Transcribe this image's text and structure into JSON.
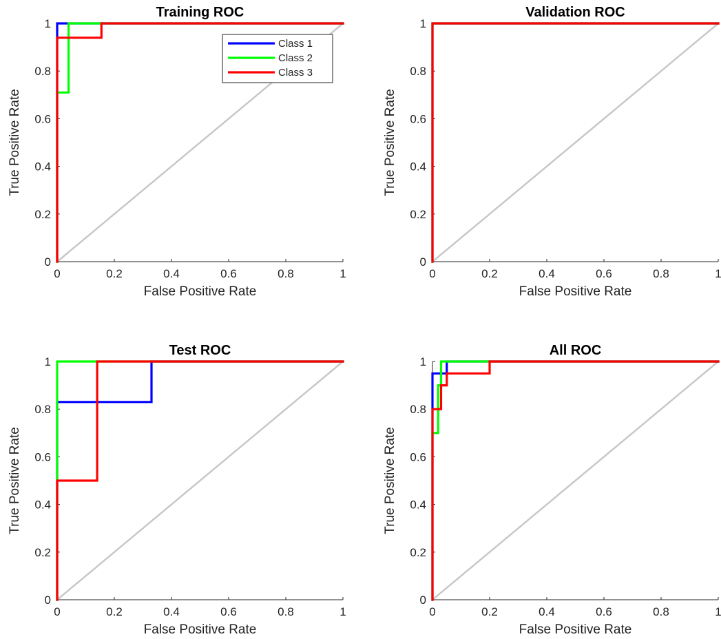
{
  "chart_data": [
    {
      "type": "line",
      "title": "Training ROC",
      "xlabel": "False Positive Rate",
      "ylabel": "True Positive Rate",
      "xlim": [
        0,
        1
      ],
      "ylim": [
        0,
        1
      ],
      "xticks": [
        "0",
        "0.2",
        "0.4",
        "0.6",
        "0.8",
        "1"
      ],
      "yticks": [
        "0",
        "0.2",
        "0.4",
        "0.6",
        "0.8",
        "1"
      ],
      "grid": false,
      "diagonal": true,
      "legend": {
        "placement": "top-right",
        "entries": [
          "Class 1",
          "Class 2",
          "Class 3"
        ]
      },
      "series": [
        {
          "name": "Class 1",
          "color": "#0000ff",
          "points": [
            [
              0,
              0
            ],
            [
              0,
              0.94
            ],
            [
              0,
              1
            ],
            [
              0.03,
              1
            ],
            [
              1,
              1
            ]
          ]
        },
        {
          "name": "Class 2",
          "color": "#00ff00",
          "points": [
            [
              0,
              0
            ],
            [
              0,
              0.71
            ],
            [
              0.04,
              0.71
            ],
            [
              0.04,
              1
            ],
            [
              0.15,
              1
            ],
            [
              1,
              1
            ]
          ]
        },
        {
          "name": "Class 3",
          "color": "#ff0000",
          "points": [
            [
              0,
              0
            ],
            [
              0,
              0.94
            ],
            [
              0.155,
              0.94
            ],
            [
              0.155,
              1
            ],
            [
              1,
              1
            ]
          ]
        }
      ]
    },
    {
      "type": "line",
      "title": "Validation ROC",
      "xlabel": "False Positive Rate",
      "ylabel": "True Positive Rate",
      "xlim": [
        0,
        1
      ],
      "ylim": [
        0,
        1
      ],
      "xticks": [
        "0",
        "0.2",
        "0.4",
        "0.6",
        "0.8",
        "1"
      ],
      "yticks": [
        "0",
        "0.2",
        "0.4",
        "0.6",
        "0.8",
        "1"
      ],
      "grid": false,
      "diagonal": true,
      "series": [
        {
          "color": "#0000ff",
          "points": [
            [
              0,
              0
            ],
            [
              0,
              1
            ],
            [
              1,
              1
            ]
          ]
        },
        {
          "color": "#00ff00",
          "points": [
            [
              0,
              0
            ],
            [
              0,
              1
            ],
            [
              1,
              1
            ]
          ]
        },
        {
          "color": "#ff0000",
          "points": [
            [
              0,
              0
            ],
            [
              0,
              1
            ],
            [
              1,
              1
            ]
          ]
        }
      ]
    },
    {
      "type": "line",
      "title": "Test ROC",
      "xlabel": "False Positive Rate",
      "ylabel": "True Positive Rate",
      "xlim": [
        0,
        1
      ],
      "ylim": [
        0,
        1
      ],
      "xticks": [
        "0",
        "0.2",
        "0.4",
        "0.6",
        "0.8",
        "1"
      ],
      "yticks": [
        "0",
        "0.2",
        "0.4",
        "0.6",
        "0.8",
        "1"
      ],
      "grid": false,
      "diagonal": true,
      "series": [
        {
          "color": "#0000ff",
          "points": [
            [
              0,
              0
            ],
            [
              0,
              0.83
            ],
            [
              0.33,
              0.83
            ],
            [
              0.33,
              1
            ],
            [
              1,
              1
            ]
          ]
        },
        {
          "color": "#00ff00",
          "points": [
            [
              0,
              0
            ],
            [
              0,
              0.5
            ],
            [
              0,
              1
            ],
            [
              0.14,
              1
            ],
            [
              1,
              1
            ]
          ]
        },
        {
          "color": "#ff0000",
          "points": [
            [
              0,
              0
            ],
            [
              0,
              0.5
            ],
            [
              0.14,
              0.5
            ],
            [
              0.14,
              1
            ],
            [
              1,
              1
            ]
          ]
        }
      ]
    },
    {
      "type": "line",
      "title": "All ROC",
      "xlabel": "False Positive Rate",
      "ylabel": "True Positive Rate",
      "xlim": [
        0,
        1
      ],
      "ylim": [
        0,
        1
      ],
      "xticks": [
        "0",
        "0.2",
        "0.4",
        "0.6",
        "0.8",
        "1"
      ],
      "yticks": [
        "0",
        "0.2",
        "0.4",
        "0.6",
        "0.8",
        "1"
      ],
      "grid": false,
      "diagonal": true,
      "series": [
        {
          "color": "#0000ff",
          "points": [
            [
              0,
              0
            ],
            [
              0,
              0.8
            ],
            [
              0,
              0.95
            ],
            [
              0.05,
              0.95
            ],
            [
              0.05,
              1
            ],
            [
              1,
              1
            ]
          ]
        },
        {
          "color": "#00ff00",
          "points": [
            [
              0,
              0
            ],
            [
              0,
              0.7
            ],
            [
              0.02,
              0.7
            ],
            [
              0.02,
              0.9
            ],
            [
              0.03,
              0.9
            ],
            [
              0.03,
              1
            ],
            [
              0.2,
              1
            ],
            [
              1,
              1
            ]
          ]
        },
        {
          "color": "#ff0000",
          "points": [
            [
              0,
              0
            ],
            [
              0,
              0.8
            ],
            [
              0.03,
              0.8
            ],
            [
              0.03,
              0.9
            ],
            [
              0.05,
              0.9
            ],
            [
              0.05,
              0.95
            ],
            [
              0.2,
              0.95
            ],
            [
              0.2,
              1
            ],
            [
              1,
              1
            ]
          ]
        }
      ]
    }
  ]
}
